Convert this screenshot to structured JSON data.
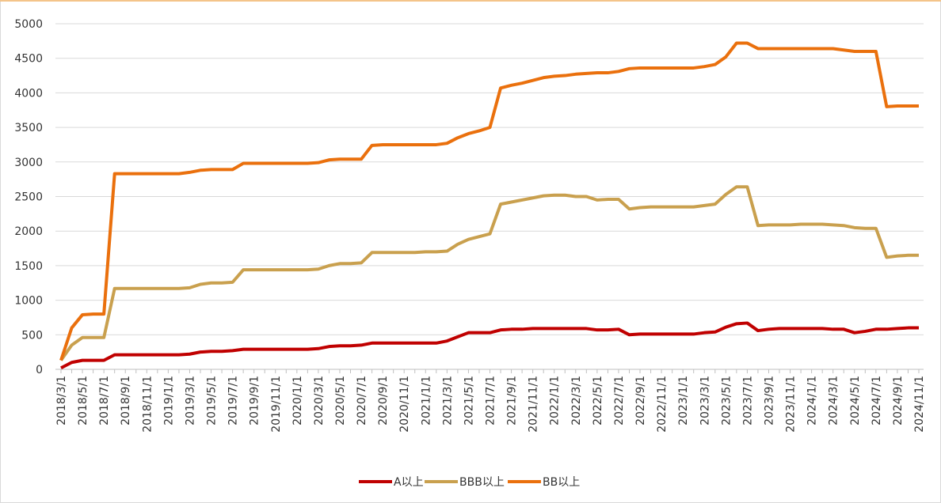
{
  "chart_data": {
    "type": "line",
    "categories": [
      "2018/3/1",
      null,
      "2018/5/1",
      null,
      "2018/7/1",
      null,
      "2018/9/1",
      null,
      "2018/11/1",
      null,
      "2019/1/1",
      null,
      "2019/3/1",
      null,
      "2019/5/1",
      null,
      "2019/7/1",
      null,
      "2019/9/1",
      null,
      "2019/11/1",
      null,
      "2020/1/1",
      null,
      "2020/3/1",
      null,
      "2020/5/1",
      null,
      "2020/7/1",
      null,
      "2020/9/1",
      null,
      "2020/11/1",
      null,
      "2021/1/1",
      null,
      "2021/3/1",
      null,
      "2021/5/1",
      null,
      "2021/7/1",
      null,
      "2021/9/1",
      null,
      "2021/11/1",
      null,
      "2022/1/1",
      null,
      "2022/3/1",
      null,
      "2022/5/1",
      null,
      "2022/7/1",
      null,
      "2022/9/1",
      null,
      "2022/11/1",
      null,
      "2023/1/1",
      null,
      "2023/3/1",
      null,
      "2023/5/1",
      null,
      "2023/7/1",
      null,
      "2023/9/1",
      null,
      "2023/11/1",
      null,
      "2024/1/1",
      null,
      "2024/3/1",
      null,
      "2024/5/1",
      null,
      "2024/7/1",
      null,
      "2024/9/1",
      null,
      "2024/11/1"
    ],
    "series": [
      {
        "name": "A以上",
        "color": "#c00000",
        "values": [
          20,
          100,
          130,
          130,
          130,
          210,
          210,
          210,
          210,
          210,
          210,
          210,
          220,
          250,
          260,
          260,
          270,
          290,
          290,
          290,
          290,
          290,
          290,
          290,
          300,
          330,
          340,
          340,
          350,
          380,
          380,
          380,
          380,
          380,
          380,
          380,
          410,
          470,
          530,
          530,
          530,
          570,
          580,
          580,
          590,
          590,
          590,
          590,
          590,
          590,
          570,
          570,
          580,
          500,
          510,
          510,
          510,
          510,
          510,
          510,
          530,
          540,
          610,
          660,
          670,
          560,
          580,
          590,
          590,
          590,
          590,
          590,
          580,
          580,
          530,
          550,
          580,
          580,
          590,
          600,
          600
        ]
      },
      {
        "name": "BBB以上",
        "color": "#c9a04e",
        "values": [
          130,
          350,
          460,
          460,
          460,
          1170,
          1170,
          1170,
          1170,
          1170,
          1170,
          1170,
          1180,
          1230,
          1250,
          1250,
          1260,
          1440,
          1440,
          1440,
          1440,
          1440,
          1440,
          1440,
          1450,
          1500,
          1530,
          1530,
          1540,
          1690,
          1690,
          1690,
          1690,
          1690,
          1700,
          1700,
          1710,
          1810,
          1880,
          1920,
          1960,
          2390,
          2420,
          2450,
          2480,
          2510,
          2520,
          2520,
          2500,
          2500,
          2450,
          2460,
          2460,
          2320,
          2340,
          2350,
          2350,
          2350,
          2350,
          2350,
          2370,
          2390,
          2530,
          2640,
          2640,
          2080,
          2090,
          2090,
          2090,
          2100,
          2100,
          2100,
          2090,
          2080,
          2050,
          2040,
          2040,
          1620,
          1640,
          1650,
          1650
        ]
      },
      {
        "name": "BB以上",
        "color": "#ea700d",
        "values": [
          130,
          600,
          790,
          800,
          800,
          2830,
          2830,
          2830,
          2830,
          2830,
          2830,
          2830,
          2850,
          2880,
          2890,
          2890,
          2890,
          2980,
          2980,
          2980,
          2980,
          2980,
          2980,
          2980,
          2990,
          3030,
          3040,
          3040,
          3040,
          3240,
          3250,
          3250,
          3250,
          3250,
          3250,
          3250,
          3270,
          3350,
          3410,
          3450,
          3500,
          4070,
          4110,
          4140,
          4180,
          4220,
          4240,
          4250,
          4270,
          4280,
          4290,
          4290,
          4310,
          4350,
          4360,
          4360,
          4360,
          4360,
          4360,
          4360,
          4380,
          4410,
          4520,
          4720,
          4720,
          4640,
          4640,
          4640,
          4640,
          4640,
          4640,
          4640,
          4640,
          4620,
          4600,
          4600,
          4600,
          3800,
          3810,
          3810,
          3810
        ]
      }
    ],
    "ylim": [
      0,
      5000
    ],
    "yticks": [
      0,
      500,
      1000,
      1500,
      2000,
      2500,
      3000,
      3500,
      4000,
      4500,
      5000
    ],
    "grid": true,
    "legend": "bottom"
  }
}
